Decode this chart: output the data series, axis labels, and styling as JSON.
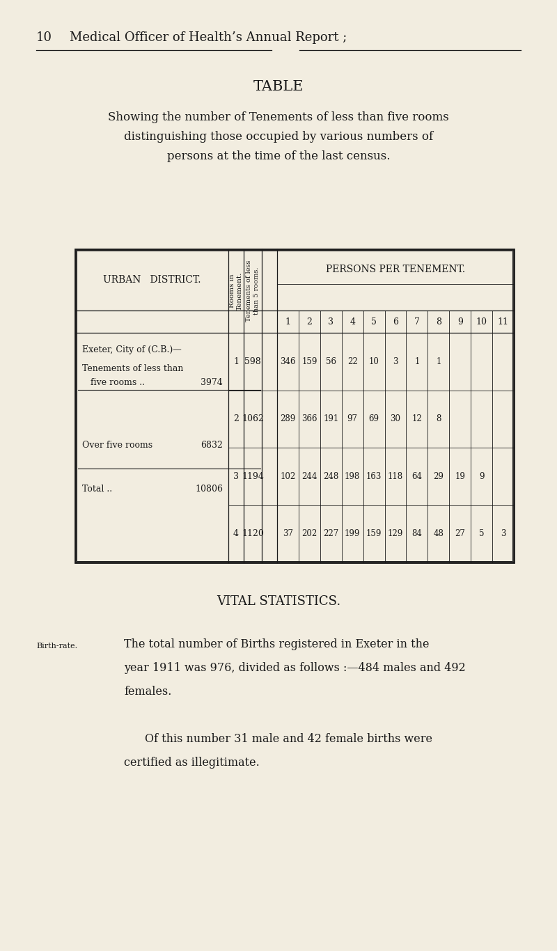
{
  "bg_color": "#f2ede0",
  "text_color": "#1a1a1a",
  "page_header_num": "10",
  "page_header_title": "Medical Officer of Health’s Annual Report ;",
  "table_title": "TABLE",
  "table_subtitle_line1": "Showing the number of Tenements of less than five rooms",
  "table_subtitle_line2": "distinguishing those occupied by various numbers of",
  "table_subtitle_line3": "persons at the time of the last census.",
  "col_header_left": "URBAN   DISTRICT.",
  "col_header_rot1": "Rooms in\nTenement.",
  "col_header_rot2": "Tenements of less\nthan 5 rooms.",
  "col_header_right": "PERSONS PER TENEMENT.",
  "person_cols": [
    "1",
    "2",
    "3",
    "4",
    "5",
    "6",
    "7",
    "8",
    "9",
    "10",
    "11"
  ],
  "district_label": "Exeter, City of (C.B.)—",
  "sub_label1": "Tenements of less than",
  "sub_label2": "five rooms ..",
  "sub_val1": "3974",
  "over_label": "Over five rooms",
  "over_val": "6832",
  "total_label": "Total ..",
  "total_val": "10806",
  "table_rows": [
    {
      "rooms": "1",
      "tenements": "598",
      "persons": [
        "346",
        "159",
        "56",
        "22",
        "10",
        "3",
        "1",
        "1",
        "",
        "",
        ""
      ]
    },
    {
      "rooms": "2",
      "tenements": "1062",
      "persons": [
        "289",
        "366",
        "191",
        "97",
        "69",
        "30",
        "12",
        "8",
        "",
        "",
        ""
      ]
    },
    {
      "rooms": "3",
      "tenements": "1194",
      "persons": [
        "102",
        "244",
        "248",
        "198",
        "163",
        "118",
        "64",
        "29",
        "19",
        "9",
        ""
      ]
    },
    {
      "rooms": "4",
      "tenements": "1120",
      "persons": [
        "37",
        "202",
        "227",
        "199",
        "159",
        "129",
        "84",
        "48",
        "27",
        "5",
        "3"
      ]
    }
  ],
  "vital_stats_title": "VITAL STATISTICS.",
  "birth_rate_label": "Birth-rate.",
  "birth_rate_text1": "The total number of Births registered in Exeter in the",
  "birth_rate_text2": "year 1911 was 976, divided as follows :—484 males and 492",
  "birth_rate_text3": "females.",
  "birth_rate_text4": "Of this number 31 male and 42 female births were",
  "birth_rate_text5": "certified as illegitimate."
}
